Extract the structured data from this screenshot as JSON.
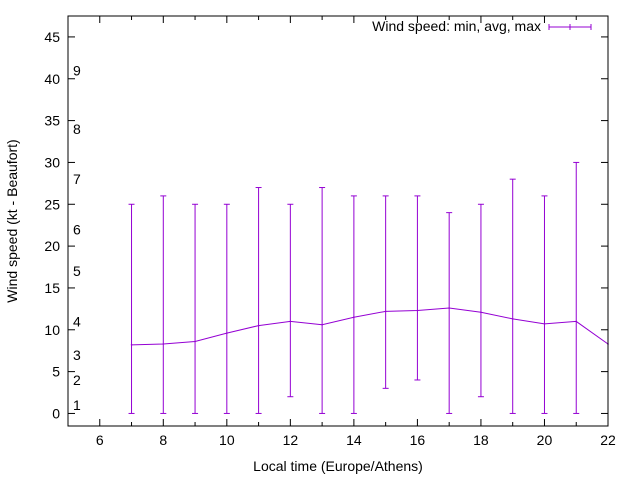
{
  "chart_data": {
    "type": "line",
    "title": "",
    "xlabel": "Local time (Europe/Athens)",
    "ylabel": "Wind speed (kt - Beaufort)",
    "xlim": [
      5,
      22
    ],
    "ylim": [
      -1.5,
      47.5
    ],
    "xticks": [
      "6",
      "8",
      "10",
      "12",
      "14",
      "16",
      "18",
      "20",
      "22"
    ],
    "yticks": [
      "0",
      "5",
      "10",
      "15",
      "20",
      "25",
      "30",
      "35",
      "40",
      "45"
    ],
    "beaufort_labels": [
      {
        "label": "1",
        "kt": 1
      },
      {
        "label": "2",
        "kt": 4
      },
      {
        "label": "3",
        "kt": 7
      },
      {
        "label": "4",
        "kt": 11
      },
      {
        "label": "5",
        "kt": 17
      },
      {
        "label": "6",
        "kt": 22
      },
      {
        "label": "7",
        "kt": 28
      },
      {
        "label": "8",
        "kt": 34
      },
      {
        "label": "9",
        "kt": 41
      }
    ],
    "legend": {
      "label": "Wind speed: min, avg, max",
      "position": "top-right"
    },
    "series": [
      {
        "name": "Wind speed: min, avg, max",
        "color": "#9400d3",
        "x": [
          7,
          8,
          9,
          10,
          11,
          12,
          13,
          14,
          15,
          16,
          17,
          18,
          19,
          20,
          21,
          22
        ],
        "avg": [
          8.2,
          8.3,
          8.6,
          9.6,
          10.5,
          11.0,
          10.6,
          11.5,
          12.2,
          12.3,
          12.6,
          12.1,
          11.3,
          10.7,
          11.0,
          8.3
        ],
        "min": [
          0,
          0,
          0,
          0,
          0,
          2,
          0,
          0,
          3,
          4,
          0,
          2,
          0,
          0,
          0,
          null
        ],
        "max": [
          25,
          26,
          25,
          25,
          27,
          25,
          27,
          26,
          26,
          26,
          24,
          25,
          28,
          26,
          30,
          null
        ]
      }
    ]
  }
}
